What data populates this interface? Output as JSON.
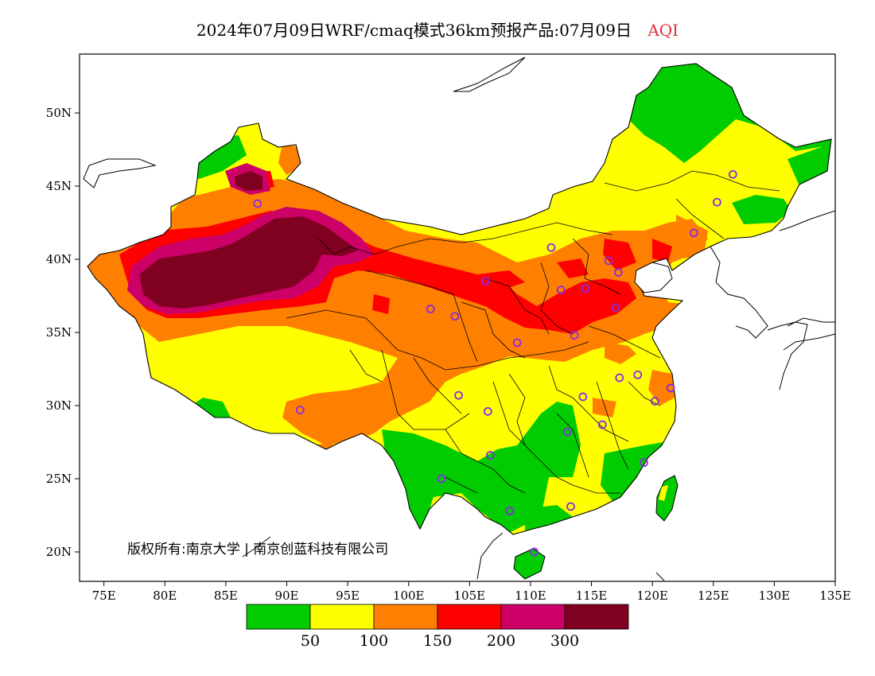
{
  "title": {
    "main": "2024年07月09日WRF/cmaq模式36km预报产品:07月09日",
    "indicator": "AQI",
    "indicator_color": "#e0303a"
  },
  "axes": {
    "lon_ticks": [
      "75E",
      "80E",
      "85E",
      "90E",
      "95E",
      "100E",
      "105E",
      "110E",
      "115E",
      "120E",
      "125E",
      "130E",
      "135E"
    ],
    "lat_ticks": [
      "20N",
      "25N",
      "30N",
      "35N",
      "40N",
      "45N",
      "50N"
    ]
  },
  "legend": {
    "colors": [
      "#00cc00",
      "#ffff00",
      "#ff8000",
      "#ff0000",
      "#cc0066",
      "#800020"
    ],
    "breaks": [
      "50",
      "100",
      "150",
      "200",
      "300"
    ]
  },
  "copyright": "版权所有:南京大学 | 南京创蓝科技有限公司",
  "stations": [
    {
      "lon": 87.6,
      "lat": 43.8
    },
    {
      "lon": 91.1,
      "lat": 29.7
    },
    {
      "lon": 101.8,
      "lat": 36.6
    },
    {
      "lon": 103.8,
      "lat": 36.1
    },
    {
      "lon": 106.3,
      "lat": 38.5
    },
    {
      "lon": 108.9,
      "lat": 34.3
    },
    {
      "lon": 104.1,
      "lat": 30.7
    },
    {
      "lon": 106.5,
      "lat": 29.6
    },
    {
      "lon": 106.7,
      "lat": 26.6
    },
    {
      "lon": 102.7,
      "lat": 25.0
    },
    {
      "lon": 108.3,
      "lat": 22.8
    },
    {
      "lon": 110.3,
      "lat": 20.0
    },
    {
      "lon": 113.3,
      "lat": 23.1
    },
    {
      "lon": 113.0,
      "lat": 28.2
    },
    {
      "lon": 114.3,
      "lat": 30.6
    },
    {
      "lon": 115.9,
      "lat": 28.7
    },
    {
      "lon": 119.3,
      "lat": 26.1
    },
    {
      "lon": 120.2,
      "lat": 30.3
    },
    {
      "lon": 118.8,
      "lat": 32.1
    },
    {
      "lon": 121.5,
      "lat": 31.2
    },
    {
      "lon": 117.3,
      "lat": 31.9
    },
    {
      "lon": 113.6,
      "lat": 34.8
    },
    {
      "lon": 117.0,
      "lat": 36.7
    },
    {
      "lon": 114.5,
      "lat": 38.0
    },
    {
      "lon": 112.5,
      "lat": 37.9
    },
    {
      "lon": 116.4,
      "lat": 39.9
    },
    {
      "lon": 117.2,
      "lat": 39.1
    },
    {
      "lon": 123.4,
      "lat": 41.8
    },
    {
      "lon": 125.3,
      "lat": 43.9
    },
    {
      "lon": 126.6,
      "lat": 45.8
    },
    {
      "lon": 111.7,
      "lat": 40.8
    }
  ]
}
